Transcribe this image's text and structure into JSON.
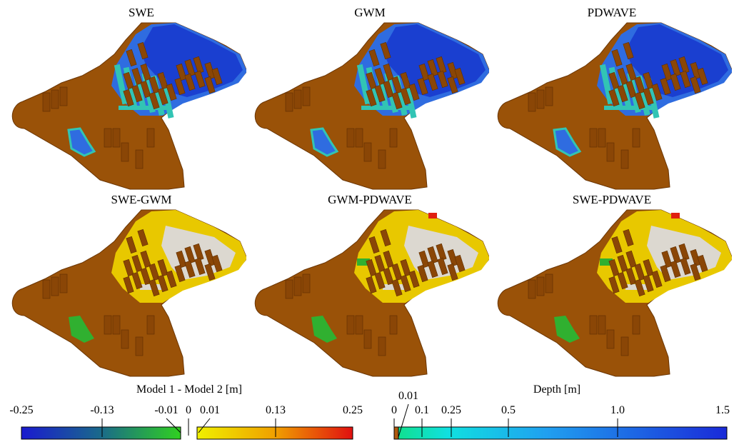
{
  "panels": [
    {
      "title": "SWE",
      "kind": "depth"
    },
    {
      "title": "GWM",
      "kind": "depth"
    },
    {
      "title": "PDWAVE",
      "kind": "depth"
    },
    {
      "title": "SWE-GWM",
      "kind": "diff"
    },
    {
      "title": "GWM-PDWAVE",
      "kind": "diff"
    },
    {
      "title": "SWE-PDWAVE",
      "kind": "diff"
    }
  ],
  "colors": {
    "terrain": "#9a5208",
    "building": "#8a4606",
    "deep_water": "#1a3fd0",
    "mid_water": "#2f6ce0",
    "shallow_water": "#32c4b4",
    "diff_zero": "#dcd8d0",
    "diff_pos_low": "#e8c800",
    "diff_pos_high": "#e02010",
    "diff_neg": "#30b030"
  },
  "diff_colorbar": {
    "title": "Model 1 - Model 2 [m]",
    "ticks": [
      "-0.25",
      "-0.13",
      "-0.01",
      "0",
      "0.01",
      "0.13",
      "0.25"
    ]
  },
  "depth_colorbar": {
    "title": "Depth [m]",
    "ticks": [
      "0",
      "0.01",
      "0.1",
      "0.25",
      "0.5",
      "1.0",
      "1.5"
    ]
  }
}
